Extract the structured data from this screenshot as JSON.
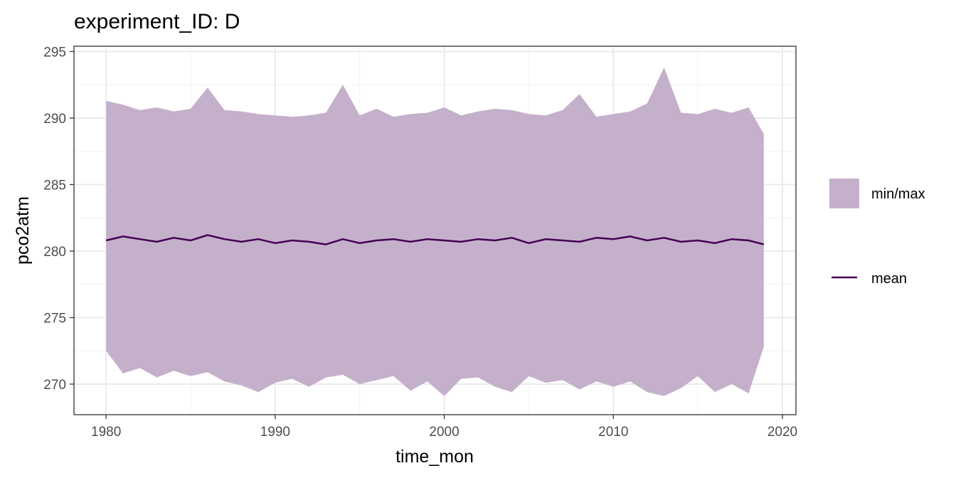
{
  "chart_data": {
    "type": "area",
    "title": "experiment_ID: D",
    "xlabel": "time_mon",
    "ylabel": "pco2atm",
    "xlim": [
      1978.1,
      2020.8
    ],
    "ylim": [
      267.7,
      295.4
    ],
    "x_ticks": [
      1980,
      1990,
      2000,
      2010,
      2020
    ],
    "x_tick_labels": [
      "1980",
      "1990",
      "2000",
      "2010",
      "2020"
    ],
    "y_ticks": [
      270,
      275,
      280,
      285,
      290,
      295
    ],
    "y_tick_labels": [
      "270",
      "275",
      "280",
      "285",
      "290",
      "295"
    ],
    "grid": true,
    "legend_position": "right",
    "legend": [
      {
        "label": "min/max",
        "kind": "ribbon"
      },
      {
        "label": "mean",
        "kind": "line"
      }
    ],
    "colors": {
      "ribbon": "#c5b0cb",
      "mean": "#440154"
    },
    "x": [
      1980.0,
      1981.0,
      1982.0,
      1983.0,
      1984.0,
      1985.0,
      1986.0,
      1987.0,
      1988.0,
      1989.0,
      1990.0,
      1991.0,
      1992.0,
      1993.0,
      1994.0,
      1995.0,
      1996.0,
      1997.0,
      1998.0,
      1999.0,
      2000.0,
      2001.0,
      2002.0,
      2003.0,
      2004.0,
      2005.0,
      2006.0,
      2007.0,
      2008.0,
      2009.0,
      2010.0,
      2011.0,
      2012.0,
      2013.0,
      2014.0,
      2015.0,
      2016.0,
      2017.0,
      2018.0,
      2018.9
    ],
    "series": [
      {
        "name": "min",
        "values": [
          272.5,
          270.8,
          271.2,
          270.5,
          271.0,
          270.6,
          270.9,
          270.2,
          269.9,
          269.4,
          270.1,
          270.4,
          269.8,
          270.5,
          270.7,
          270.0,
          270.3,
          270.6,
          269.5,
          270.2,
          269.1,
          270.4,
          270.5,
          269.8,
          269.4,
          270.6,
          270.1,
          270.3,
          269.6,
          270.2,
          269.8,
          270.2,
          269.4,
          269.1,
          269.7,
          270.6,
          269.4,
          270.0,
          269.3,
          272.8
        ]
      },
      {
        "name": "max",
        "values": [
          291.3,
          291.0,
          290.6,
          290.8,
          290.5,
          290.7,
          292.3,
          290.6,
          290.5,
          290.3,
          290.2,
          290.1,
          290.2,
          290.4,
          292.5,
          290.2,
          290.7,
          290.1,
          290.3,
          290.4,
          290.8,
          290.2,
          290.5,
          290.7,
          290.6,
          290.3,
          290.2,
          290.6,
          291.8,
          290.1,
          290.3,
          290.5,
          291.1,
          293.8,
          290.4,
          290.3,
          290.7,
          290.4,
          290.8,
          288.8
        ]
      },
      {
        "name": "mean",
        "values": [
          280.8,
          281.1,
          280.9,
          280.7,
          281.0,
          280.8,
          281.2,
          280.9,
          280.7,
          280.9,
          280.6,
          280.8,
          280.7,
          280.5,
          280.9,
          280.6,
          280.8,
          280.9,
          280.7,
          280.9,
          280.8,
          280.7,
          280.9,
          280.8,
          281.0,
          280.6,
          280.9,
          280.8,
          280.7,
          281.0,
          280.9,
          281.1,
          280.8,
          281.0,
          280.7,
          280.8,
          280.6,
          280.9,
          280.8,
          280.5
        ]
      }
    ]
  }
}
